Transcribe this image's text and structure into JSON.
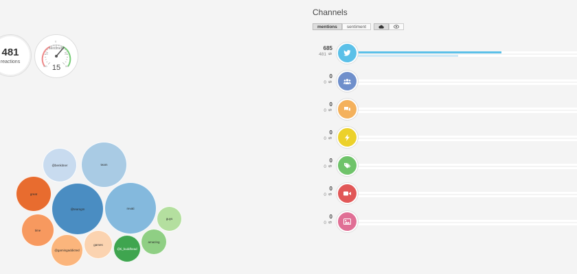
{
  "stats": {
    "reactions_count": "481",
    "reactions_label": "reactions"
  },
  "gauge": {
    "title": "sentiment",
    "value": "15",
    "ticks": [
      "-50",
      "-25",
      "0",
      "25",
      "50"
    ],
    "needle_fraction": 0.65
  },
  "bubbles": [
    {
      "label": "@benkitner",
      "color": "#c8dbef"
    },
    {
      "label": "team",
      "color": "#a9cbe4"
    },
    {
      "label": "great",
      "color": "#e86c2f"
    },
    {
      "label": "@teamgm",
      "color": "#4a8dc2"
    },
    {
      "label": "revati",
      "color": "#84b9dd"
    },
    {
      "label": "guys",
      "color": "#b4df9f"
    },
    {
      "label": "time",
      "color": "#f7995f"
    },
    {
      "label": "games",
      "color": "#fbd3b0"
    },
    {
      "label": "amazing",
      "color": "#8fcf84"
    },
    {
      "label": "@gamingaddicted",
      "color": "#fbb57c"
    },
    {
      "label": "@ti_buddhead",
      "color": "#3fa54f"
    }
  ],
  "channels": {
    "title": "Channels",
    "toggle": {
      "mentions": "mentions",
      "sentiment": "sentiment"
    },
    "view_icons": [
      "cloud-icon",
      "eye-icon"
    ],
    "max": 685,
    "rows": [
      {
        "name": "twitter",
        "icon": "twitter-icon",
        "color": "#5bc0e8",
        "mentions": "685",
        "reactions": "481",
        "mentions_value": 685,
        "reactions_value": 481
      },
      {
        "name": "community",
        "icon": "users-icon",
        "color": "#6f8fcb",
        "mentions": "0",
        "reactions": "0",
        "mentions_value": 0,
        "reactions_value": 0
      },
      {
        "name": "forums",
        "icon": "chat-icon",
        "color": "#f4b15c",
        "mentions": "0",
        "reactions": "0",
        "mentions_value": 0,
        "reactions_value": 0
      },
      {
        "name": "news",
        "icon": "bolt-icon",
        "color": "#ecd12b",
        "mentions": "0",
        "reactions": "0",
        "mentions_value": 0,
        "reactions_value": 0
      },
      {
        "name": "deals",
        "icon": "tag-icon",
        "color": "#6fc36a",
        "mentions": "0",
        "reactions": "0",
        "mentions_value": 0,
        "reactions_value": 0
      },
      {
        "name": "video",
        "icon": "video-icon",
        "color": "#e15757",
        "mentions": "0",
        "reactions": "0",
        "mentions_value": 0,
        "reactions_value": 0
      },
      {
        "name": "images",
        "icon": "image-icon",
        "color": "#e06f95",
        "mentions": "0",
        "reactions": "0",
        "mentions_value": 0,
        "reactions_value": 0
      }
    ]
  }
}
